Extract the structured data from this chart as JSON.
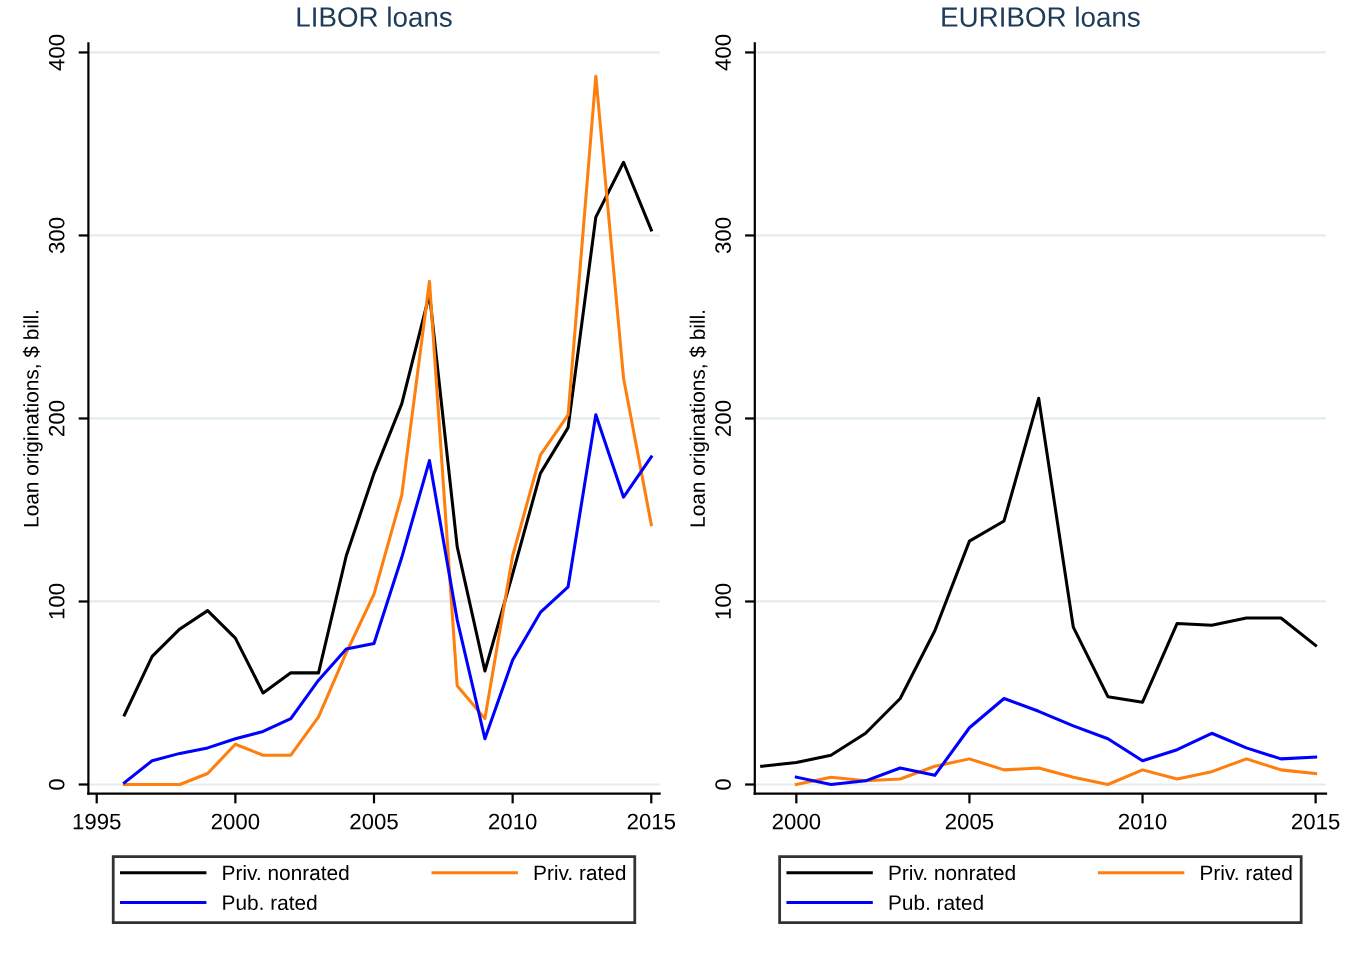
{
  "chart_data": [
    {
      "type": "line",
      "title": "LIBOR loans",
      "ylabel": "Loan originations, $ bill.",
      "xlim": [
        1994.7,
        2015.3
      ],
      "xticks": [
        1995,
        2000,
        2005,
        2010,
        2015
      ],
      "ylim": [
        -5,
        405
      ],
      "yticks": [
        0,
        100,
        200,
        300,
        400
      ],
      "grid": "y",
      "legend": "bottom",
      "line_style": "solid",
      "marker": "none",
      "x": [
        1996,
        1997,
        1998,
        1999,
        2000,
        2001,
        2002,
        2003,
        2004,
        2005,
        2006,
        2007,
        2008,
        2009,
        2010,
        2011,
        2012,
        2013,
        2014,
        2015
      ],
      "series": [
        {
          "name": "Priv. nonrated",
          "color": "#000000",
          "values": [
            38,
            70,
            85,
            95,
            80,
            50,
            61,
            61,
            125,
            170,
            208,
            268,
            130,
            62,
            115,
            170,
            195,
            310,
            340,
            303
          ]
        },
        {
          "name": "Priv. rated",
          "color": "#ff7f0e",
          "values": [
            0,
            0,
            0,
            6,
            22,
            16,
            16,
            37,
            72,
            104,
            158,
            275,
            54,
            36,
            125,
            180,
            202,
            387,
            222,
            142
          ]
        },
        {
          "name": "Pub. rated",
          "color": "#0000ff",
          "values": [
            1,
            13,
            17,
            20,
            25,
            29,
            36,
            57,
            74,
            77,
            124,
            177,
            90,
            25,
            68,
            94,
            108,
            202,
            157,
            179
          ]
        }
      ]
    },
    {
      "type": "line",
      "title": "EURIBOR loans",
      "ylabel": "Loan originations, $ bill.",
      "xlim": [
        1998.8,
        2015.3
      ],
      "xticks": [
        2000,
        2005,
        2010,
        2015
      ],
      "ylim": [
        -5,
        405
      ],
      "yticks": [
        0,
        100,
        200,
        300,
        400
      ],
      "grid": "y",
      "legend": "bottom",
      "line_style": "solid",
      "marker": "none",
      "series": [
        {
          "name": "Priv. nonrated",
          "color": "#000000",
          "x": [
            1999,
            2000,
            2001,
            2002,
            2003,
            2004,
            2005,
            2006,
            2007,
            2008,
            2009,
            2010,
            2011,
            2012,
            2013,
            2014,
            2015
          ],
          "values": [
            10,
            12,
            16,
            28,
            47,
            84,
            133,
            144,
            211,
            86,
            48,
            45,
            88,
            87,
            91,
            91,
            76
          ]
        },
        {
          "name": "Priv. rated",
          "color": "#ff7f0e",
          "x": [
            2000,
            2001,
            2002,
            2003,
            2004,
            2005,
            2006,
            2007,
            2008,
            2009,
            2010,
            2011,
            2012,
            2013,
            2014,
            2015
          ],
          "values": [
            0,
            4,
            2,
            3,
            10,
            14,
            8,
            9,
            4,
            0,
            8,
            3,
            7,
            14,
            8,
            6
          ]
        },
        {
          "name": "Pub. rated",
          "color": "#0000ff",
          "x": [
            2000,
            2001,
            2002,
            2003,
            2004,
            2005,
            2006,
            2007,
            2008,
            2009,
            2010,
            2011,
            2012,
            2013,
            2014,
            2015
          ],
          "values": [
            4,
            0,
            2,
            9,
            5,
            31,
            47,
            40,
            32,
            25,
            13,
            19,
            28,
            20,
            14,
            15
          ]
        }
      ]
    }
  ]
}
